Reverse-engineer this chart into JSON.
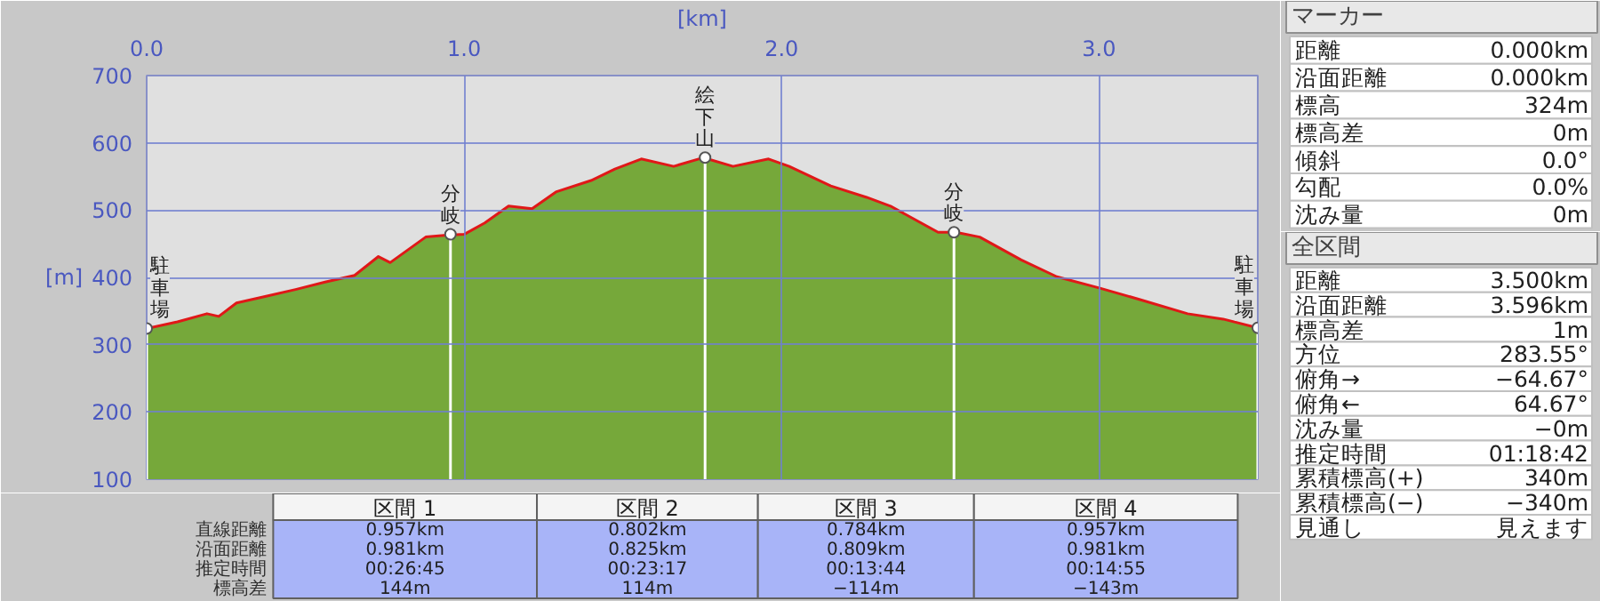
{
  "chart_data": [
    {
      "type": "area",
      "xlabel": "[km]",
      "ylabel": "[m]",
      "series": [
        {
          "color": "#76a83a",
          "x": [
            0,
            0.097,
            0.19,
            0.227,
            0.283,
            0.376,
            0.469,
            0.562,
            0.655,
            0.73,
            0.767,
            0.879,
            0.953,
            1.0,
            1.065,
            1.14,
            1.214,
            1.289,
            1.4,
            1.475,
            1.558,
            1.66,
            1.753,
            1.847,
            1.959,
            2.024,
            2.155,
            2.268,
            2.343,
            2.493,
            2.549,
            2.624,
            2.755,
            2.867,
            3.003,
            3.129,
            3.279,
            3.391,
            3.5
          ],
          "values": [
            324,
            334,
            346,
            342,
            362,
            372,
            382,
            393,
            403,
            431,
            422,
            460,
            463,
            464,
            481,
            506,
            502,
            527,
            544,
            561,
            576,
            565,
            578,
            565,
            576,
            565,
            536,
            519,
            506,
            467,
            467,
            460,
            426,
            401,
            384,
            367,
            346,
            338,
            325
          ]
        },
        {
          "type": "line",
          "color": "#e01818",
          "x": [
            0,
            0.097,
            0.19,
            0.227,
            0.283,
            0.376,
            0.469,
            0.562,
            0.655,
            0.73,
            0.767,
            0.879,
            0.953,
            1.0,
            1.065,
            1.14,
            1.214,
            1.289,
            1.4,
            1.475,
            1.558,
            1.66,
            1.753,
            1.847,
            1.959,
            2.024,
            2.155,
            2.268,
            2.343,
            2.493,
            2.549,
            2.624,
            2.755,
            2.867,
            3.003,
            3.129,
            3.279,
            3.391,
            3.5
          ],
          "values": [
            324,
            334,
            346,
            342,
            362,
            372,
            382,
            393,
            403,
            431,
            422,
            460,
            463,
            464,
            481,
            506,
            502,
            527,
            544,
            561,
            576,
            565,
            578,
            565,
            576,
            565,
            536,
            519,
            506,
            467,
            467,
            460,
            426,
            401,
            384,
            367,
            346,
            338,
            325
          ]
        }
      ],
      "xlim": [
        0,
        3.5
      ],
      "xticks": [
        {
          "value": 0,
          "label": "0.0"
        },
        {
          "value": 1,
          "label": "1.0"
        },
        {
          "value": 2,
          "label": "2.0"
        },
        {
          "value": 3,
          "label": "3.0"
        }
      ],
      "ylim": [
        100,
        700
      ],
      "yticks": [
        100,
        200,
        300,
        400,
        500,
        600,
        700
      ],
      "grid": true,
      "marker": "none",
      "annotations": [
        {
          "text": "駐車場",
          "x": 0,
          "y": 324
        },
        {
          "text": "分岐",
          "x": 0.957,
          "y": 464
        },
        {
          "text": "絵下山",
          "x": 1.759,
          "y": 578
        },
        {
          "text": "分岐",
          "x": 2.543,
          "y": 467
        },
        {
          "text": "駐車場",
          "x": 3.5,
          "y": 325
        }
      ]
    },
    {
      "type": "other",
      "categories": [
        "区間 1",
        "区間 2",
        "区間 3",
        "区間 4"
      ],
      "y_categories": [
        "直線距離",
        "沿面距離",
        "推定時間",
        "標高差"
      ],
      "cell_labels": [
        [
          "0.957km",
          "0.802km",
          "0.784km",
          "0.957km"
        ],
        [
          "0.981km",
          "0.825km",
          "0.809km",
          "0.981km"
        ],
        [
          "00:26:45",
          "00:23:17",
          "00:13:44",
          "00:14:55"
        ],
        [
          "144m",
          "114m",
          "−114m",
          "−143m"
        ]
      ]
    },
    {
      "type": "other",
      "title": "マーカー",
      "annotations": [
        "距離",
        "0.000km",
        "沿面距離",
        "0.000km",
        "標高",
        "324m",
        "標高差",
        "0m",
        "傾斜",
        "0.0°",
        "勾配",
        "0.0%",
        "沈み量",
        "0m"
      ]
    },
    {
      "type": "other",
      "title": "全区間",
      "annotations": [
        "距離",
        "3.500km",
        "沿面距離",
        "3.596km",
        "標高差",
        "1m",
        "方位",
        "283.55°",
        "俯角→",
        "−64.67°",
        "俯角←",
        "64.67°",
        "沈み量",
        "−0m",
        "推定時間",
        "01:18:42",
        "累積標高(+)",
        "340m",
        "累積標高(−)",
        "−340m",
        "見通し",
        "見えます"
      ]
    }
  ]
}
